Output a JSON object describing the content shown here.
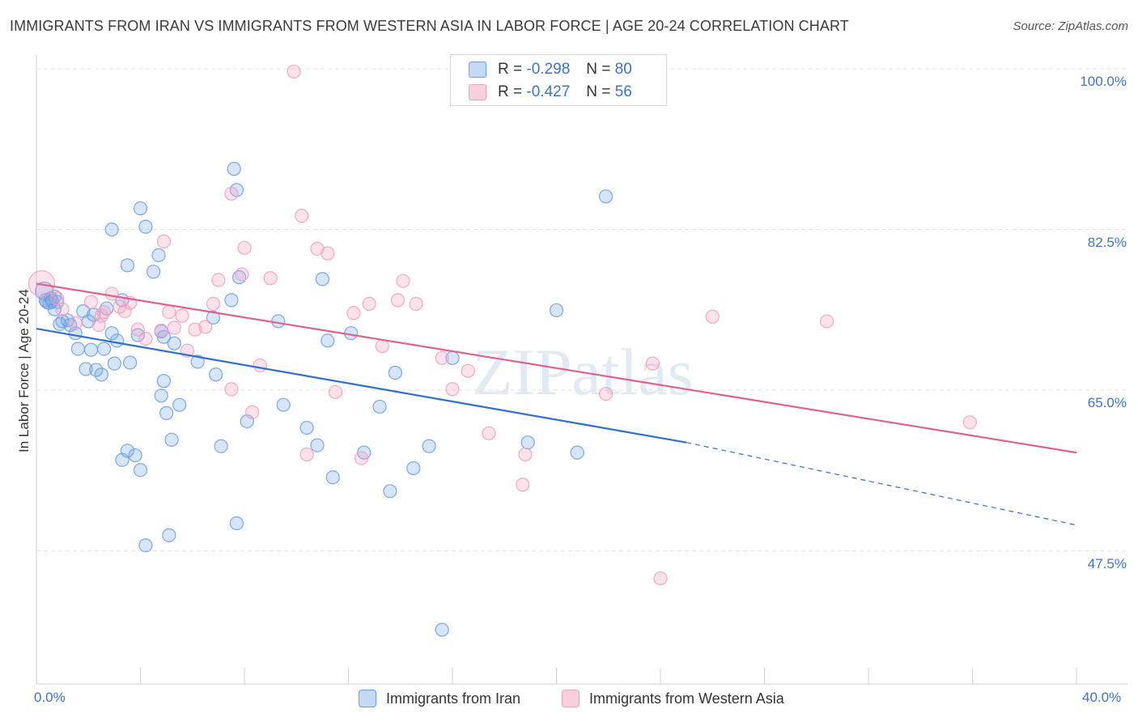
{
  "title": "IMMIGRANTS FROM IRAN VS IMMIGRANTS FROM WESTERN ASIA IN LABOR FORCE | AGE 20-24 CORRELATION CHART",
  "source": "Source: ZipAtlas.com",
  "legend": {
    "r_label": "R =",
    "n_label": "N =",
    "iran": {
      "r": "-0.298",
      "n": "80"
    },
    "wasia": {
      "r": "-0.427",
      "n": "56"
    }
  },
  "watermark": "ZIPatlas",
  "chart_data": {
    "type": "scatter",
    "xlabel": "",
    "ylabel": "In Labor Force | Age 20-24",
    "xlim": [
      0,
      40
    ],
    "ylim": [
      33,
      101.5
    ],
    "x_tick_labels": [
      "0.0%",
      "40.0%"
    ],
    "y_ticks": [
      47.5,
      65.0,
      82.5,
      100.0
    ],
    "y_tick_labels": [
      "47.5%",
      "65.0%",
      "82.5%",
      "100.0%"
    ],
    "grid": true,
    "legend_position": "top-center",
    "series": [
      {
        "name": "Immigrants from Iran",
        "color": "#6aa0e6",
        "trend": {
          "x0": 0,
          "y0": 71.7,
          "x1": 25,
          "y1": 59.3,
          "dash_to_x": 40,
          "dash_to_y": 50.3,
          "color": "#2f6fcf"
        },
        "points": [
          [
            0.3,
            75.8
          ],
          [
            0.35,
            74.8
          ],
          [
            0.4,
            74.6
          ],
          [
            0.5,
            74.5
          ],
          [
            0.55,
            75.0
          ],
          [
            0.6,
            74.7
          ],
          [
            0.7,
            75.2
          ],
          [
            0.8,
            74.6
          ],
          [
            0.9,
            72.2
          ],
          [
            1.0,
            72.5
          ],
          [
            1.2,
            72.6
          ],
          [
            1.5,
            71.2
          ],
          [
            1.8,
            73.6
          ],
          [
            1.6,
            69.5
          ],
          [
            2.0,
            72.5
          ],
          [
            2.2,
            73.2
          ],
          [
            1.9,
            67.3
          ],
          [
            2.3,
            67.2
          ],
          [
            2.5,
            66.7
          ],
          [
            2.6,
            69.5
          ],
          [
            2.9,
            71.2
          ],
          [
            3.0,
            67.9
          ],
          [
            3.1,
            70.4
          ],
          [
            3.3,
            74.8
          ],
          [
            2.9,
            82.5
          ],
          [
            3.5,
            78.6
          ],
          [
            3.6,
            68.0
          ],
          [
            3.3,
            57.4
          ],
          [
            3.5,
            58.4
          ],
          [
            3.8,
            57.9
          ],
          [
            4.0,
            56.3
          ],
          [
            4.2,
            48.1
          ],
          [
            4.0,
            84.8
          ],
          [
            4.2,
            82.8
          ],
          [
            4.5,
            77.9
          ],
          [
            4.7,
            79.7
          ],
          [
            5.1,
            49.2
          ],
          [
            4.9,
            66.0
          ],
          [
            4.8,
            64.4
          ],
          [
            5.0,
            62.5
          ],
          [
            4.9,
            70.8
          ],
          [
            4.8,
            71.4
          ],
          [
            5.3,
            70.1
          ],
          [
            5.2,
            59.6
          ],
          [
            5.5,
            63.4
          ],
          [
            6.2,
            68.1
          ],
          [
            6.8,
            72.9
          ],
          [
            6.9,
            66.7
          ],
          [
            7.1,
            58.9
          ],
          [
            7.5,
            74.8
          ],
          [
            7.6,
            89.1
          ],
          [
            7.7,
            86.8
          ],
          [
            7.8,
            77.3
          ],
          [
            7.7,
            50.5
          ],
          [
            8.1,
            61.6
          ],
          [
            9.3,
            72.5
          ],
          [
            9.5,
            63.4
          ],
          [
            10.4,
            60.9
          ],
          [
            10.8,
            59.0
          ],
          [
            11.0,
            77.1
          ],
          [
            11.2,
            70.4
          ],
          [
            11.4,
            55.5
          ],
          [
            12.1,
            71.2
          ],
          [
            12.6,
            58.2
          ],
          [
            13.2,
            63.2
          ],
          [
            13.6,
            54.0
          ],
          [
            13.8,
            66.9
          ],
          [
            14.5,
            56.5
          ],
          [
            15.1,
            58.9
          ],
          [
            15.6,
            38.9
          ],
          [
            16.0,
            68.5
          ],
          [
            18.9,
            59.3
          ],
          [
            20.0,
            73.7
          ],
          [
            20.8,
            58.2
          ],
          [
            21.9,
            86.1
          ],
          [
            1.3,
            72.1
          ],
          [
            2.1,
            69.4
          ],
          [
            0.7,
            73.8
          ],
          [
            2.7,
            73.9
          ],
          [
            3.9,
            71.0
          ]
        ]
      },
      {
        "name": "Immigrants from Western Asia",
        "color": "#f2a0bc",
        "trend": {
          "x0": 0,
          "y0": 76.6,
          "x1": 40,
          "y1": 58.2,
          "color": "#e0608c"
        },
        "points": [
          [
            0.2,
            76.6
          ],
          [
            0.8,
            75.0
          ],
          [
            1.0,
            73.8
          ],
          [
            1.5,
            72.3
          ],
          [
            2.1,
            74.6
          ],
          [
            2.4,
            72.1
          ],
          [
            2.5,
            73.1
          ],
          [
            2.6,
            73.5
          ],
          [
            2.9,
            75.5
          ],
          [
            3.2,
            74.1
          ],
          [
            3.4,
            73.6
          ],
          [
            3.6,
            74.5
          ],
          [
            3.9,
            71.6
          ],
          [
            4.2,
            70.6
          ],
          [
            4.8,
            71.5
          ],
          [
            4.9,
            81.2
          ],
          [
            5.1,
            73.5
          ],
          [
            5.3,
            71.8
          ],
          [
            5.6,
            73.1
          ],
          [
            5.8,
            69.3
          ],
          [
            6.1,
            71.6
          ],
          [
            6.5,
            71.9
          ],
          [
            6.8,
            74.4
          ],
          [
            7.0,
            77.0
          ],
          [
            7.5,
            86.4
          ],
          [
            7.5,
            65.1
          ],
          [
            7.9,
            77.6
          ],
          [
            8.0,
            80.5
          ],
          [
            8.3,
            62.6
          ],
          [
            8.6,
            67.7
          ],
          [
            9.0,
            77.2
          ],
          [
            9.9,
            99.7
          ],
          [
            10.2,
            84.0
          ],
          [
            10.4,
            58.0
          ],
          [
            10.8,
            80.4
          ],
          [
            11.2,
            79.9
          ],
          [
            11.5,
            64.8
          ],
          [
            12.2,
            73.4
          ],
          [
            12.5,
            57.6
          ],
          [
            12.8,
            74.4
          ],
          [
            13.3,
            69.8
          ],
          [
            13.9,
            74.8
          ],
          [
            14.1,
            76.9
          ],
          [
            14.6,
            74.4
          ],
          [
            15.6,
            68.5
          ],
          [
            16.0,
            65.1
          ],
          [
            16.6,
            67.1
          ],
          [
            17.4,
            60.3
          ],
          [
            18.8,
            58.0
          ],
          [
            18.7,
            54.7
          ],
          [
            21.9,
            64.6
          ],
          [
            23.7,
            67.9
          ],
          [
            24.0,
            44.5
          ],
          [
            26.0,
            73.0
          ],
          [
            30.4,
            72.5
          ],
          [
            35.9,
            61.5
          ]
        ]
      }
    ]
  }
}
